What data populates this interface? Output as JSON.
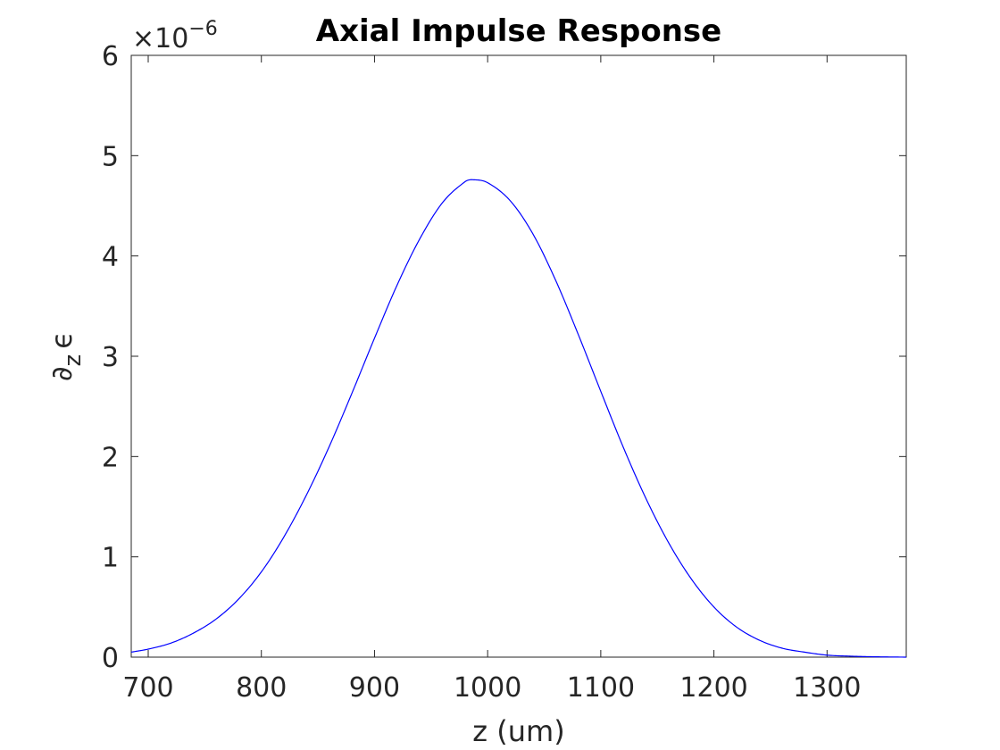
{
  "chart_data": {
    "type": "line",
    "title": "Axial Impulse Response",
    "xlabel": "z (um)",
    "ylabel": {
      "symbol": "∂",
      "sub": "z",
      "var": "ϵ"
    },
    "y_multiplier": {
      "prefix": "×10",
      "exponent": "−6"
    },
    "xlim": [
      685,
      1370
    ],
    "ylim": [
      0,
      6
    ],
    "x_ticks": [
      700,
      800,
      900,
      1000,
      1100,
      1200,
      1300
    ],
    "y_ticks": [
      0,
      1,
      2,
      3,
      4,
      5,
      6
    ],
    "grid": false,
    "box": true,
    "line_color": "#0000ff",
    "series": [
      {
        "x": [
          685,
          700,
          720,
          740,
          760,
          780,
          800,
          820,
          840,
          860,
          880,
          900,
          920,
          940,
          960,
          980,
          987,
          1000,
          1020,
          1040,
          1060,
          1080,
          1100,
          1120,
          1140,
          1160,
          1180,
          1200,
          1220,
          1240,
          1260,
          1280,
          1300,
          1320,
          1340,
          1370
        ],
        "y": [
          0.05,
          0.08,
          0.14,
          0.24,
          0.38,
          0.58,
          0.85,
          1.2,
          1.62,
          2.1,
          2.63,
          3.18,
          3.71,
          4.17,
          4.53,
          4.74,
          4.76,
          4.73,
          4.55,
          4.22,
          3.76,
          3.22,
          2.65,
          2.09,
          1.58,
          1.14,
          0.78,
          0.5,
          0.3,
          0.17,
          0.09,
          0.05,
          0.02,
          0.01,
          0.004,
          0.0
        ]
      }
    ]
  }
}
